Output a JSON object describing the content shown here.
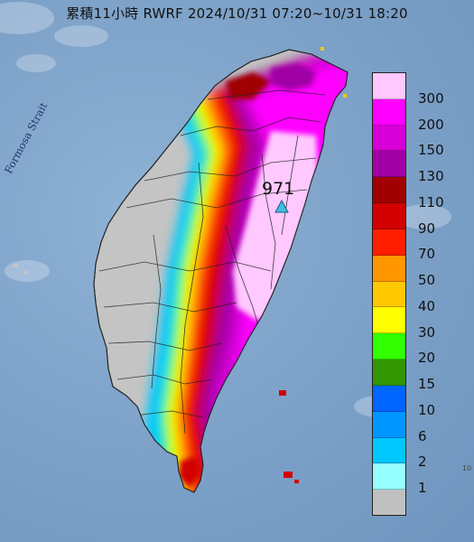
{
  "map_title": "累積11小時 RWRF 2024/10/31 07:20~10/31 18:20",
  "strait_label": "Formosa Strait",
  "max_station_value": "971",
  "corner_mark": "10",
  "legend": {
    "labels": [
      "300",
      "200",
      "150",
      "130",
      "110",
      "90",
      "70",
      "50",
      "40",
      "30",
      "20",
      "15",
      "10",
      "6",
      "2",
      "1"
    ],
    "colors": [
      "#ffc8ff",
      "#ff00ff",
      "#d600d6",
      "#a000a6",
      "#a00000",
      "#d20000",
      "#ff1e00",
      "#ff9600",
      "#ffc800",
      "#ffff00",
      "#32ff00",
      "#329600",
      "#0064ff",
      "#0096ff",
      "#00c8ff",
      "#96ffff",
      "#c0c0c0"
    ]
  }
}
